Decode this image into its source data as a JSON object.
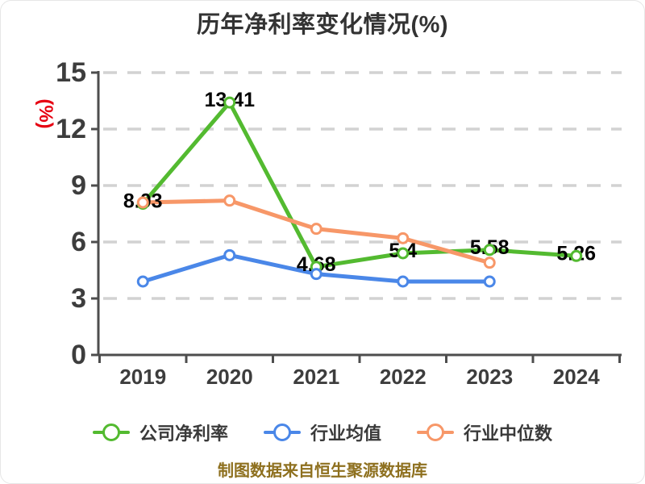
{
  "title": "历年净利率变化情况(%)",
  "y_axis_unit": "(%)",
  "footer_note": "制图数据来自恒生聚源数据库",
  "colors": {
    "title_text": "#333333",
    "axis": "#4d4d4d",
    "tick_label": "#3d3d3d",
    "gridline": "#d2d2d2",
    "y_unit_red": "#e60012",
    "value_label": "#000000",
    "legend_text": "#3a3a3a",
    "footer_gold": "#8e701f"
  },
  "chart_data": {
    "type": "line",
    "title": "历年净利率变化情况(%)",
    "categories": [
      "2019",
      "2020",
      "2021",
      "2022",
      "2023",
      "2024"
    ],
    "series": [
      {
        "name": "公司净利率",
        "color": "#53ba30",
        "values": [
          8.03,
          13.41,
          4.68,
          5.4,
          5.58,
          5.26
        ],
        "point_labels": [
          "8.03",
          "13.41",
          "4.68",
          "5.4",
          "5.58",
          "5.26"
        ]
      },
      {
        "name": "行业均值",
        "color": "#4a87e8",
        "values": [
          3.9,
          5.3,
          4.3,
          3.9,
          3.9,
          null
        ],
        "point_labels": null
      },
      {
        "name": "行业中位数",
        "color": "#f79768",
        "values": [
          8.1,
          8.2,
          6.7,
          6.2,
          4.9,
          null
        ],
        "point_labels": null
      }
    ],
    "ylim": [
      0,
      15
    ],
    "yticks": [
      0,
      3,
      6,
      9,
      12,
      15
    ],
    "ylabel": "(%)",
    "xlabel": "",
    "grid": "horizontal-dashed",
    "legend_position": "bottom",
    "marker_style": "circle-white-fill"
  },
  "legend": {
    "items": [
      {
        "label": "公司净利率",
        "color": "#53ba30"
      },
      {
        "label": "行业均值",
        "color": "#4a87e8"
      },
      {
        "label": "行业中位数",
        "color": "#f79768"
      }
    ]
  }
}
